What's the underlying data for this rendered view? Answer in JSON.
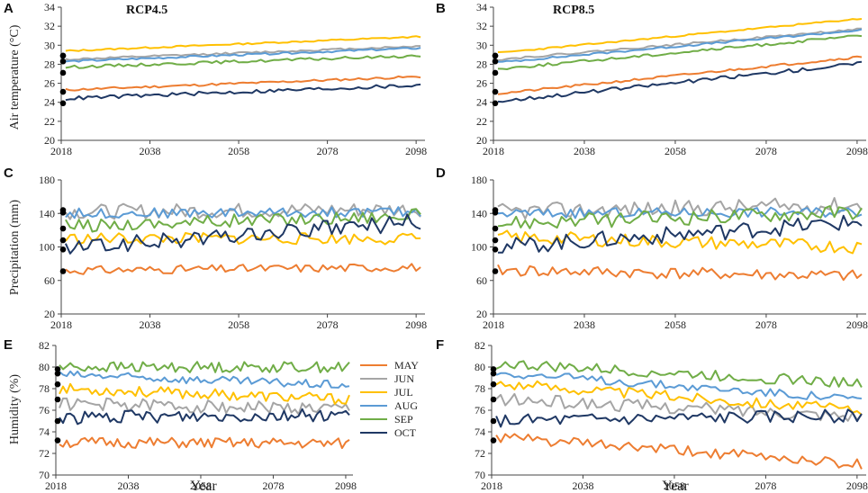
{
  "colors": {
    "MAY": "#ED7D31",
    "JUN": "#A5A5A5",
    "JUL": "#FFC000",
    "AUG": "#5B9BD5",
    "SEP": "#70AD47",
    "OCT": "#1F3864"
  },
  "legend": [
    "MAY",
    "JUN",
    "JUL",
    "AUG",
    "SEP",
    "OCT"
  ],
  "xlabel": "Year",
  "chart_data": [
    {
      "panel": "A",
      "type": "line",
      "title": "RCP4.5",
      "ylabel": "Air temperature (°C)",
      "ylim": [
        20,
        34
      ],
      "yticks": [
        20,
        22,
        24,
        26,
        28,
        30,
        32,
        34
      ],
      "xlim": [
        2018,
        2100
      ],
      "xticks": [
        2018,
        2038,
        2058,
        2078,
        2098
      ],
      "observed": [
        {
          "name": "MAY",
          "value": 25.1
        },
        {
          "name": "JUN",
          "value": 28.9
        },
        {
          "name": "JUL",
          "value": 28.9
        },
        {
          "name": "AUG",
          "value": 28.3
        },
        {
          "name": "SEP",
          "value": 27.1
        },
        {
          "name": "OCT",
          "value": 23.9
        }
      ],
      "series": [
        {
          "name": "MAY",
          "start": 25.3,
          "end": 26.7,
          "noise": 0.12,
          "seed": 11
        },
        {
          "name": "JUN",
          "start": 28.5,
          "end": 29.9,
          "noise": 0.1,
          "seed": 12
        },
        {
          "name": "JUL",
          "start": 29.4,
          "end": 30.9,
          "noise": 0.08,
          "seed": 13
        },
        {
          "name": "AUG",
          "start": 28.3,
          "end": 29.7,
          "noise": 0.1,
          "seed": 14
        },
        {
          "name": "SEP",
          "start": 27.7,
          "end": 28.9,
          "noise": 0.15,
          "seed": 15
        },
        {
          "name": "OCT",
          "start": 24.4,
          "end": 25.8,
          "noise": 0.2,
          "seed": 16
        }
      ]
    },
    {
      "panel": "B",
      "type": "line",
      "title": "RCP8.5",
      "ylabel": "",
      "ylim": [
        20,
        34
      ],
      "yticks": [
        20,
        22,
        24,
        26,
        28,
        30,
        32,
        34
      ],
      "xlim": [
        2018,
        2100
      ],
      "xticks": [
        2018,
        2038,
        2058,
        2078,
        2098
      ],
      "observed": [
        {
          "name": "MAY",
          "value": 25.1
        },
        {
          "name": "JUN",
          "value": 28.9
        },
        {
          "name": "JUL",
          "value": 28.9
        },
        {
          "name": "AUG",
          "value": 28.3
        },
        {
          "name": "SEP",
          "value": 27.1
        },
        {
          "name": "OCT",
          "value": 23.9
        }
      ],
      "series": [
        {
          "name": "MAY",
          "start": 24.9,
          "end": 28.8,
          "noise": 0.12,
          "seed": 21
        },
        {
          "name": "JUN",
          "start": 28.5,
          "end": 31.7,
          "noise": 0.1,
          "seed": 22
        },
        {
          "name": "JUL",
          "start": 29.2,
          "end": 32.8,
          "noise": 0.08,
          "seed": 23
        },
        {
          "name": "AUG",
          "start": 28.2,
          "end": 31.6,
          "noise": 0.1,
          "seed": 24
        },
        {
          "name": "SEP",
          "start": 27.5,
          "end": 31.0,
          "noise": 0.15,
          "seed": 25
        },
        {
          "name": "OCT",
          "start": 24.1,
          "end": 28.1,
          "noise": 0.2,
          "seed": 26
        }
      ]
    },
    {
      "panel": "C",
      "type": "line",
      "title": "",
      "ylabel": "Precipitation (mm)",
      "ylim": [
        20,
        180
      ],
      "yticks": [
        20,
        60,
        100,
        140,
        180
      ],
      "xlim": [
        2018,
        2100
      ],
      "xticks": [
        2018,
        2038,
        2058,
        2078,
        2098
      ],
      "observed": [
        {
          "name": "MAY",
          "value": 71
        },
        {
          "name": "JUN",
          "value": 144
        },
        {
          "name": "JUL",
          "value": 97
        },
        {
          "name": "AUG",
          "value": 141
        },
        {
          "name": "SEP",
          "value": 122
        },
        {
          "name": "OCT",
          "value": 108
        }
      ],
      "series": [
        {
          "name": "MAY",
          "start": 72,
          "end": 76,
          "noise": 5,
          "seed": 31
        },
        {
          "name": "JUN",
          "start": 142,
          "end": 145,
          "noise": 9,
          "seed": 32
        },
        {
          "name": "JUL",
          "start": 110,
          "end": 110,
          "noise": 7,
          "seed": 33
        },
        {
          "name": "AUG",
          "start": 140,
          "end": 142,
          "noise": 6,
          "seed": 34
        },
        {
          "name": "SEP",
          "start": 125,
          "end": 138,
          "noise": 8,
          "seed": 35
        },
        {
          "name": "OCT",
          "start": 98,
          "end": 130,
          "noise": 10,
          "seed": 36
        }
      ]
    },
    {
      "panel": "D",
      "type": "line",
      "title": "",
      "ylabel": "",
      "ylim": [
        20,
        180
      ],
      "yticks": [
        20,
        60,
        100,
        140,
        180
      ],
      "xlim": [
        2018,
        2100
      ],
      "xticks": [
        2018,
        2038,
        2058,
        2078,
        2098
      ],
      "observed": [
        {
          "name": "MAY",
          "value": 71
        },
        {
          "name": "JUN",
          "value": 144
        },
        {
          "name": "JUL",
          "value": 97
        },
        {
          "name": "AUG",
          "value": 141
        },
        {
          "name": "SEP",
          "value": 122
        },
        {
          "name": "OCT",
          "value": 108
        }
      ],
      "series": [
        {
          "name": "MAY",
          "start": 72,
          "end": 65,
          "noise": 7,
          "seed": 41
        },
        {
          "name": "JUN",
          "start": 142,
          "end": 150,
          "noise": 10,
          "seed": 42
        },
        {
          "name": "JUL",
          "start": 112,
          "end": 100,
          "noise": 8,
          "seed": 43
        },
        {
          "name": "AUG",
          "start": 140,
          "end": 142,
          "noise": 6,
          "seed": 44
        },
        {
          "name": "SEP",
          "start": 128,
          "end": 142,
          "noise": 9,
          "seed": 45
        },
        {
          "name": "OCT",
          "start": 100,
          "end": 130,
          "noise": 10,
          "seed": 46
        }
      ]
    },
    {
      "panel": "E",
      "type": "line",
      "title": "",
      "ylabel": "Humidity (%)",
      "ylim": [
        70,
        82
      ],
      "yticks": [
        70,
        72,
        74,
        76,
        78,
        80,
        82
      ],
      "xlim": [
        2018,
        2100
      ],
      "xticks": [
        2018,
        2038,
        2058,
        2078,
        2098
      ],
      "observed": [
        {
          "name": "MAY",
          "value": 73.2
        },
        {
          "name": "JUN",
          "value": 77.0
        },
        {
          "name": "JUL",
          "value": 78.4
        },
        {
          "name": "AUG",
          "value": 79.4
        },
        {
          "name": "SEP",
          "value": 79.8
        },
        {
          "name": "OCT",
          "value": 75.0
        }
      ],
      "series": [
        {
          "name": "MAY",
          "start": 73.0,
          "end": 72.9,
          "noise": 0.5,
          "seed": 51
        },
        {
          "name": "JUN",
          "start": 76.6,
          "end": 76.1,
          "noise": 0.6,
          "seed": 52
        },
        {
          "name": "JUL",
          "start": 78.0,
          "end": 77.0,
          "noise": 0.5,
          "seed": 53
        },
        {
          "name": "AUG",
          "start": 79.3,
          "end": 78.3,
          "noise": 0.4,
          "seed": 54
        },
        {
          "name": "SEP",
          "start": 80.0,
          "end": 80.0,
          "noise": 0.5,
          "seed": 55
        },
        {
          "name": "OCT",
          "start": 75.3,
          "end": 75.6,
          "noise": 0.6,
          "seed": 56
        }
      ]
    },
    {
      "panel": "F",
      "type": "line",
      "title": "",
      "ylabel": "",
      "ylim": [
        70,
        82
      ],
      "yticks": [
        70,
        72,
        74,
        76,
        78,
        80,
        82
      ],
      "xlim": [
        2018,
        2100
      ],
      "xticks": [
        2018,
        2038,
        2058,
        2078,
        2098
      ],
      "observed": [
        {
          "name": "MAY",
          "value": 73.2
        },
        {
          "name": "JUN",
          "value": 77.0
        },
        {
          "name": "JUL",
          "value": 78.4
        },
        {
          "name": "AUG",
          "value": 79.4
        },
        {
          "name": "SEP",
          "value": 79.8
        },
        {
          "name": "OCT",
          "value": 75.0
        }
      ],
      "series": [
        {
          "name": "MAY",
          "start": 73.5,
          "end": 71.0,
          "noise": 0.5,
          "seed": 61
        },
        {
          "name": "JUN",
          "start": 77.0,
          "end": 75.5,
          "noise": 0.6,
          "seed": 62
        },
        {
          "name": "JUL",
          "start": 78.5,
          "end": 76.0,
          "noise": 0.5,
          "seed": 63
        },
        {
          "name": "AUG",
          "start": 79.5,
          "end": 77.0,
          "noise": 0.4,
          "seed": 64
        },
        {
          "name": "SEP",
          "start": 80.3,
          "end": 78.5,
          "noise": 0.5,
          "seed": 65
        },
        {
          "name": "OCT",
          "start": 75.0,
          "end": 75.5,
          "noise": 0.6,
          "seed": 66
        }
      ]
    }
  ]
}
